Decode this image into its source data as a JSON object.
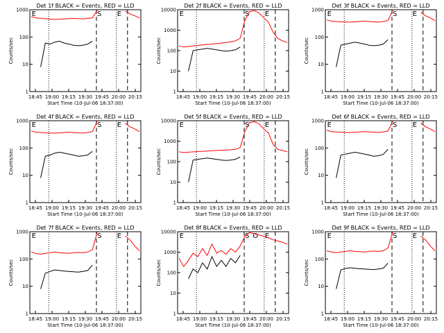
{
  "chart_data": [
    {
      "type": "line",
      "title": "Det 1f BLACK = Events, RED = LLD",
      "xlabel": "Start Time (10-Jul-06 18:37:00)",
      "ylabel": "Counts/sec",
      "ylog": true,
      "ylim": [
        1,
        1000
      ],
      "yticks": [
        "1",
        "10",
        "100",
        "1000"
      ],
      "xticks": [
        "18:45",
        "19:00",
        "19:15",
        "19:30",
        "19:45",
        "20:00",
        "20:15"
      ],
      "series": [
        {
          "color": "#ff0000",
          "values": [
            560,
            500,
            480,
            470,
            450,
            440,
            450,
            460,
            470,
            480,
            470,
            460,
            480,
            500,
            1000,
            null,
            null,
            null,
            null,
            null,
            900,
            700,
            600,
            500
          ]
        },
        {
          "color": "#000000",
          "values": [
            null,
            null,
            8,
            60,
            55,
            65,
            70,
            60,
            55,
            50,
            48,
            50,
            55,
            70,
            null,
            null,
            null,
            null,
            null,
            null,
            null,
            null,
            null,
            null
          ]
        }
      ],
      "markers": [
        "E",
        "S",
        "E"
      ]
    },
    {
      "type": "line",
      "title": "Det 2f BLACK = Events, RED = LLD",
      "xlabel": "Start Time (10-Jul-06 18:37:00)",
      "ylabel": "Counts/sec",
      "ylog": true,
      "ylim": [
        1,
        10000
      ],
      "yticks": [
        "1",
        "10",
        "100",
        "1000",
        "10000"
      ],
      "xticks": [
        "18:45",
        "19:00",
        "19:15",
        "19:30",
        "19:45",
        "20:00",
        "20:15"
      ],
      "series": [
        {
          "color": "#ff0000",
          "values": [
            170,
            150,
            160,
            170,
            180,
            190,
            200,
            210,
            220,
            230,
            250,
            270,
            300,
            400,
            3000,
            8000,
            9000,
            7000,
            4000,
            2500,
            800,
            400,
            300,
            250
          ]
        },
        {
          "color": "#000000",
          "values": [
            null,
            null,
            10,
            100,
            110,
            120,
            130,
            120,
            110,
            100,
            95,
            100,
            110,
            150,
            null,
            null,
            null,
            null,
            null,
            null,
            null,
            null,
            null,
            null
          ]
        }
      ],
      "markers": [
        "E",
        "S",
        "E"
      ]
    },
    {
      "type": "line",
      "title": "Det 3f BLACK = Events, RED = LLD",
      "xlabel": "Start Time (10-Jul-06 18:37:00)",
      "ylabel": "Counts/sec",
      "ylog": true,
      "ylim": [
        1,
        1000
      ],
      "yticks": [
        "1",
        "10",
        "100",
        "1000"
      ],
      "xticks": [
        "18:45",
        "19:00",
        "19:15",
        "19:30",
        "19:45",
        "20:00",
        "20:15"
      ],
      "series": [
        {
          "color": "#ff0000",
          "values": [
            420,
            380,
            370,
            360,
            350,
            350,
            360,
            370,
            380,
            370,
            360,
            350,
            370,
            400,
            1000,
            null,
            null,
            null,
            null,
            null,
            800,
            600,
            500,
            400
          ]
        },
        {
          "color": "#000000",
          "values": [
            null,
            null,
            8,
            50,
            55,
            60,
            65,
            60,
            55,
            50,
            48,
            50,
            55,
            80,
            null,
            null,
            null,
            null,
            null,
            null,
            null,
            null,
            null,
            null
          ]
        }
      ],
      "markers": [
        "E",
        "S",
        "E"
      ]
    },
    {
      "type": "line",
      "title": "Det 4f BLACK = Events, RED = LLD",
      "xlabel": "Start Time (10-Jul-06 18:37:00)",
      "ylabel": "Counts/sec",
      "ylog": true,
      "ylim": [
        1,
        1000
      ],
      "yticks": [
        "1",
        "10",
        "100",
        "1000"
      ],
      "xticks": [
        "18:45",
        "19:00",
        "19:15",
        "19:30",
        "19:45",
        "20:00",
        "20:15"
      ],
      "series": [
        {
          "color": "#ff0000",
          "values": [
            420,
            380,
            370,
            360,
            350,
            350,
            360,
            370,
            380,
            370,
            360,
            350,
            370,
            400,
            1000,
            null,
            null,
            null,
            null,
            null,
            800,
            600,
            500,
            400
          ]
        },
        {
          "color": "#000000",
          "values": [
            null,
            null,
            8,
            50,
            55,
            65,
            70,
            65,
            60,
            55,
            50,
            52,
            55,
            75,
            null,
            null,
            null,
            null,
            null,
            null,
            null,
            null,
            null,
            null
          ]
        }
      ],
      "markers": [
        "E",
        "S",
        "E"
      ]
    },
    {
      "type": "line",
      "title": "Det 5f BLACK = Events, RED = LLD",
      "xlabel": "Start Time (10-Jul-06 18:37:00)",
      "ylabel": "Counts/sec",
      "ylog": true,
      "ylim": [
        1,
        10000
      ],
      "yticks": [
        "1",
        "10",
        "100",
        "1000",
        "10000"
      ],
      "xticks": [
        "18:45",
        "19:00",
        "19:15",
        "19:30",
        "19:45",
        "20:00",
        "20:15"
      ],
      "series": [
        {
          "color": "#ff0000",
          "values": [
            300,
            280,
            290,
            300,
            310,
            320,
            330,
            340,
            350,
            360,
            370,
            380,
            400,
            500,
            3000,
            8000,
            9000,
            7000,
            4000,
            2500,
            700,
            400,
            350,
            300
          ]
        },
        {
          "color": "#000000",
          "values": [
            null,
            null,
            10,
            120,
            130,
            140,
            150,
            140,
            130,
            120,
            115,
            120,
            130,
            170,
            null,
            null,
            null,
            null,
            null,
            null,
            null,
            null,
            null,
            null
          ]
        }
      ],
      "markers": [
        "E",
        "S",
        "E"
      ]
    },
    {
      "type": "line",
      "title": "Det 6f BLACK = Events, RED = LLD",
      "xlabel": "Start Time (10-Jul-06 18:37:00)",
      "ylabel": "Counts/sec",
      "ylog": true,
      "ylim": [
        1,
        1000
      ],
      "yticks": [
        "1",
        "10",
        "100",
        "1000"
      ],
      "xticks": [
        "18:45",
        "19:00",
        "19:15",
        "19:30",
        "19:45",
        "20:00",
        "20:15"
      ],
      "series": [
        {
          "color": "#ff0000",
          "values": [
            450,
            400,
            390,
            380,
            370,
            370,
            380,
            390,
            400,
            390,
            380,
            370,
            390,
            420,
            1000,
            null,
            null,
            null,
            null,
            null,
            800,
            600,
            500,
            400
          ]
        },
        {
          "color": "#000000",
          "values": [
            null,
            null,
            8,
            55,
            60,
            65,
            70,
            65,
            60,
            55,
            50,
            52,
            58,
            90,
            null,
            null,
            null,
            null,
            null,
            null,
            null,
            null,
            null,
            null
          ]
        }
      ],
      "markers": [
        "E",
        "S",
        "E"
      ]
    },
    {
      "type": "line",
      "title": "Det 7f BLACK = Events, RED = LLD",
      "xlabel": "Start Time (10-Jul-06 18:37:00)",
      "ylabel": "Counts/sec",
      "ylog": true,
      "ylim": [
        1,
        1000
      ],
      "yticks": [
        "1",
        "10",
        "100",
        "1000"
      ],
      "xticks": [
        "18:45",
        "19:00",
        "19:15",
        "19:30",
        "19:45",
        "20:00",
        "20:15"
      ],
      "series": [
        {
          "color": "#ff0000",
          "values": [
            180,
            160,
            150,
            160,
            170,
            180,
            170,
            165,
            160,
            170,
            175,
            170,
            180,
            220,
            1000,
            null,
            null,
            null,
            null,
            null,
            700,
            500,
            300,
            200
          ]
        },
        {
          "color": "#000000",
          "values": [
            null,
            null,
            8,
            30,
            35,
            40,
            38,
            36,
            35,
            34,
            33,
            35,
            38,
            60,
            null,
            null,
            null,
            null,
            null,
            null,
            null,
            null,
            null,
            null
          ]
        }
      ],
      "markers": [
        "E",
        "S",
        "E"
      ]
    },
    {
      "type": "line",
      "title": "Det 8f BLACK = Events, RED = LLD",
      "xlabel": "Start Time (10-Jul-06 18:37:00)",
      "ylabel": "Counts/sec",
      "ylog": true,
      "ylim": [
        1,
        10000
      ],
      "yticks": [
        "1",
        "10",
        "100",
        "1000",
        "10000"
      ],
      "xticks": [
        "18:45",
        "19:00",
        "19:15",
        "19:30",
        "19:45",
        "20:00",
        "20:15"
      ],
      "series": [
        {
          "color": "#ff0000",
          "values": [
            500,
            200,
            400,
            900,
            600,
            1500,
            700,
            2500,
            900,
            1200,
            800,
            1500,
            1000,
            2000,
            6000,
            9000,
            8000,
            7000,
            6000,
            5000,
            4000,
            3500,
            3000,
            2500
          ]
        },
        {
          "color": "#000000",
          "values": [
            null,
            null,
            50,
            150,
            100,
            300,
            150,
            600,
            200,
            400,
            200,
            500,
            300,
            700,
            null,
            null,
            null,
            null,
            null,
            null,
            null,
            null,
            null,
            null
          ]
        }
      ],
      "markers": [
        "E",
        "S",
        "O",
        "E"
      ]
    },
    {
      "type": "line",
      "title": "Det 9f BLACK = Events, RED = LLD",
      "xlabel": "Start Time (10-Jul-06 18:37:00)",
      "ylabel": "Counts/sec",
      "ylog": true,
      "ylim": [
        1,
        1000
      ],
      "yticks": [
        "1",
        "10",
        "100",
        "1000"
      ],
      "xticks": [
        "18:45",
        "19:00",
        "19:15",
        "19:30",
        "19:45",
        "20:00",
        "20:15"
      ],
      "series": [
        {
          "color": "#ff0000",
          "values": [
            200,
            180,
            170,
            180,
            190,
            200,
            190,
            185,
            180,
            190,
            195,
            190,
            200,
            250,
            1000,
            null,
            null,
            null,
            null,
            null,
            700,
            500,
            300,
            200
          ]
        },
        {
          "color": "#000000",
          "values": [
            null,
            null,
            8,
            40,
            45,
            48,
            46,
            44,
            43,
            42,
            41,
            43,
            46,
            70,
            null,
            null,
            null,
            null,
            null,
            null,
            null,
            null,
            null,
            null
          ]
        }
      ],
      "markers": [
        "E",
        "S",
        "E"
      ]
    }
  ]
}
